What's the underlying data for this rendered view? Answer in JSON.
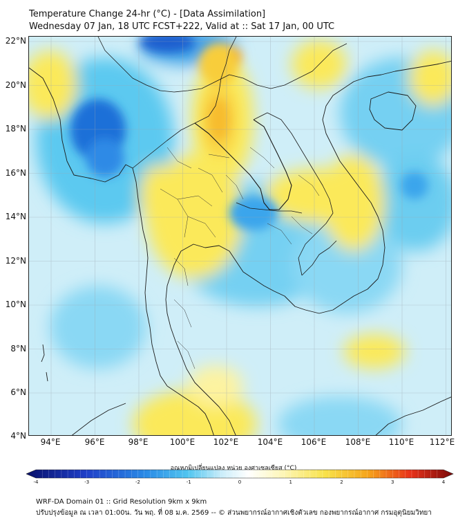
{
  "header": {
    "title_line1": "Temperature Change 24-hr (°C) - [Data Assimilation]",
    "title_line2": "Wednesday 07 Jan, 18 UTC FCST+222, Valid at :: Sat 17 Jan, 00 UTC"
  },
  "map": {
    "lat_labels": [
      "22°N",
      "20°N",
      "18°N",
      "16°N",
      "14°N",
      "12°N",
      "10°N",
      "8°N",
      "6°N",
      "4°N"
    ],
    "lon_labels": [
      "94°E",
      "96°E",
      "98°E",
      "100°E",
      "102°E",
      "104°E",
      "106°E",
      "108°E",
      "110°E",
      "112°E"
    ],
    "lat_range": [
      4,
      22.2
    ],
    "lon_range": [
      93,
      112.3
    ]
  },
  "colorbar": {
    "title": "อุณหภูมิเปลี่ยนแปลง หน่วย องศาเซลเซียส (°C)",
    "ticks": [
      "-4",
      "-3",
      "-2",
      "-1",
      "0",
      "1",
      "2",
      "3",
      "4"
    ],
    "range": [
      -4,
      4
    ],
    "colors": [
      "#08106a",
      "#1f3fc8",
      "#2a8be6",
      "#52c6f0",
      "#cdeefa",
      "#ffffff",
      "#fdf6b8",
      "#f8e24a",
      "#f6a51c",
      "#e8321a",
      "#7a0a0a"
    ]
  },
  "footer": {
    "line1": "WRF-DA Domain 01 :: Grid Resolution 9km x 9km",
    "line2": "ปรับปรุงข้อมูล ณ เวลา 01:00น. วัน พฤ. ที่ 08 ม.ค. 2569 -- © ส่วนพยากรณ์อากาศเชิงตัวเลข กองพยากรณ์อากาศ กรมอุตุนิยมวิทยา"
  }
}
